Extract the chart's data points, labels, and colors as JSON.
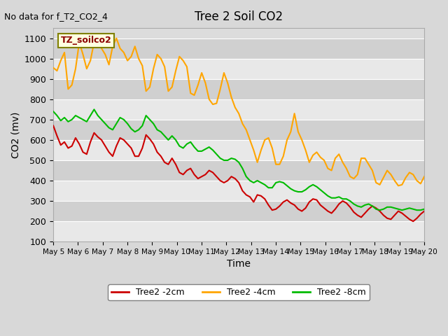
{
  "title": "Tree 2 Soil CO2",
  "subtitle": "No data for f_T2_CO2_4",
  "ylabel": "CO2 (mv)",
  "xlabel": "Time",
  "ylim": [
    100,
    1150
  ],
  "xlim": [
    0,
    15
  ],
  "xtick_labels": [
    "May 5",
    "May 6",
    "May 7",
    "May 8",
    "May 9",
    "May 10",
    "May 11",
    "May 12",
    "May 13",
    "May 14",
    "May 15",
    "May 16",
    "May 17",
    "May 18",
    "May 19",
    "May 20"
  ],
  "bg_color": "#e8e8e8",
  "plot_bg_color": "#dcdcdc",
  "band_color1": "#e0e0e0",
  "band_color2": "#cccccc",
  "legend_label_2cm": "Tree2 -2cm",
  "legend_label_4cm": "Tree2 -4cm",
  "legend_label_8cm": "Tree2 -8cm",
  "color_2cm": "#cc0000",
  "color_4cm": "#ffa500",
  "color_8cm": "#00bb00",
  "tz_label": "TZ_soilco2",
  "red_x": [
    0.0,
    0.15,
    0.3,
    0.45,
    0.6,
    0.75,
    0.9,
    1.05,
    1.2,
    1.35,
    1.5,
    1.65,
    1.8,
    1.95,
    2.1,
    2.25,
    2.4,
    2.55,
    2.7,
    2.85,
    3.0,
    3.15,
    3.3,
    3.45,
    3.6,
    3.75,
    3.9,
    4.05,
    4.2,
    4.35,
    4.5,
    4.65,
    4.8,
    4.95,
    5.1,
    5.25,
    5.4,
    5.55,
    5.7,
    5.85,
    6.0,
    6.15,
    6.3,
    6.45,
    6.6,
    6.75,
    6.9,
    7.05,
    7.2,
    7.35,
    7.5,
    7.65,
    7.8,
    7.95,
    8.1,
    8.25,
    8.4,
    8.55,
    8.7,
    8.85,
    9.0,
    9.15,
    9.3,
    9.45,
    9.6,
    9.75,
    9.9,
    10.05,
    10.2,
    10.35,
    10.5,
    10.65,
    10.8,
    10.95,
    11.1,
    11.25,
    11.4,
    11.55,
    11.7,
    11.85,
    12.0,
    12.15,
    12.3,
    12.45,
    12.6,
    12.75,
    12.9,
    13.05,
    13.2,
    13.35,
    13.5,
    13.65,
    13.8,
    13.95,
    14.1,
    14.25,
    14.4,
    14.55,
    14.7,
    14.85,
    15.0
  ],
  "red_y": [
    670,
    620,
    575,
    590,
    560,
    570,
    610,
    580,
    540,
    530,
    590,
    635,
    615,
    600,
    570,
    540,
    520,
    570,
    610,
    600,
    580,
    560,
    520,
    520,
    560,
    625,
    605,
    580,
    540,
    520,
    490,
    480,
    510,
    480,
    440,
    430,
    450,
    460,
    430,
    410,
    420,
    430,
    450,
    440,
    420,
    400,
    390,
    400,
    420,
    410,
    390,
    350,
    330,
    320,
    295,
    330,
    325,
    310,
    280,
    255,
    260,
    275,
    295,
    305,
    290,
    280,
    260,
    250,
    265,
    295,
    310,
    305,
    280,
    265,
    250,
    240,
    260,
    285,
    300,
    290,
    270,
    245,
    230,
    220,
    240,
    260,
    275,
    265,
    250,
    230,
    215,
    210,
    230,
    250,
    240,
    225,
    210,
    200,
    215,
    235,
    250
  ],
  "orange_x": [
    0.0,
    0.15,
    0.3,
    0.45,
    0.6,
    0.75,
    0.9,
    1.05,
    1.2,
    1.35,
    1.5,
    1.65,
    1.8,
    1.95,
    2.1,
    2.25,
    2.4,
    2.55,
    2.7,
    2.85,
    3.0,
    3.15,
    3.3,
    3.45,
    3.6,
    3.75,
    3.9,
    4.05,
    4.2,
    4.35,
    4.5,
    4.65,
    4.8,
    4.95,
    5.1,
    5.25,
    5.4,
    5.55,
    5.7,
    5.85,
    6.0,
    6.15,
    6.3,
    6.45,
    6.6,
    6.75,
    6.9,
    7.05,
    7.2,
    7.35,
    7.5,
    7.65,
    7.8,
    7.95,
    8.1,
    8.25,
    8.4,
    8.55,
    8.7,
    8.85,
    9.0,
    9.15,
    9.3,
    9.45,
    9.6,
    9.75,
    9.9,
    10.05,
    10.2,
    10.35,
    10.5,
    10.65,
    10.8,
    10.95,
    11.1,
    11.25,
    11.4,
    11.55,
    11.7,
    11.85,
    12.0,
    12.15,
    12.3,
    12.45,
    12.6,
    12.75,
    12.9,
    13.05,
    13.2,
    13.35,
    13.5,
    13.65,
    13.8,
    13.95,
    14.1,
    14.25,
    14.4,
    14.55,
    14.7,
    14.85,
    15.0
  ],
  "orange_y": [
    955,
    940,
    990,
    1030,
    850,
    870,
    950,
    1080,
    1020,
    950,
    990,
    1080,
    1100,
    1050,
    1020,
    970,
    1060,
    1100,
    1050,
    1030,
    990,
    1010,
    1060,
    1000,
    965,
    840,
    860,
    950,
    1020,
    1000,
    960,
    840,
    860,
    940,
    1010,
    990,
    960,
    830,
    820,
    870,
    930,
    880,
    800,
    775,
    780,
    850,
    930,
    880,
    810,
    760,
    730,
    680,
    650,
    600,
    550,
    490,
    550,
    600,
    610,
    560,
    480,
    480,
    520,
    600,
    640,
    730,
    640,
    600,
    550,
    490,
    525,
    540,
    515,
    500,
    460,
    450,
    510,
    530,
    490,
    460,
    420,
    410,
    430,
    510,
    510,
    480,
    450,
    390,
    380,
    415,
    450,
    430,
    400,
    375,
    380,
    415,
    440,
    430,
    400,
    385,
    420
  ],
  "green_x": [
    0.0,
    0.15,
    0.3,
    0.45,
    0.6,
    0.75,
    0.9,
    1.05,
    1.2,
    1.35,
    1.5,
    1.65,
    1.8,
    1.95,
    2.1,
    2.25,
    2.4,
    2.55,
    2.7,
    2.85,
    3.0,
    3.15,
    3.3,
    3.45,
    3.6,
    3.75,
    3.9,
    4.05,
    4.2,
    4.35,
    4.5,
    4.65,
    4.8,
    4.95,
    5.1,
    5.25,
    5.4,
    5.55,
    5.7,
    5.85,
    6.0,
    6.15,
    6.3,
    6.45,
    6.6,
    6.75,
    6.9,
    7.05,
    7.2,
    7.35,
    7.5,
    7.65,
    7.8,
    7.95,
    8.1,
    8.25,
    8.4,
    8.55,
    8.7,
    8.85,
    9.0,
    9.15,
    9.3,
    9.45,
    9.6,
    9.75,
    9.9,
    10.05,
    10.2,
    10.35,
    10.5,
    10.65,
    10.8,
    10.95,
    11.1,
    11.25,
    11.4,
    11.55,
    11.7,
    11.85,
    12.0,
    12.15,
    12.3,
    12.45,
    12.6,
    12.75,
    12.9,
    13.05,
    13.2,
    13.35,
    13.5,
    13.65,
    13.8,
    13.95,
    14.1,
    14.25,
    14.4,
    14.55,
    14.7,
    14.85,
    15.0
  ],
  "green_y": [
    740,
    720,
    695,
    710,
    690,
    700,
    720,
    710,
    700,
    690,
    720,
    750,
    720,
    700,
    680,
    660,
    650,
    680,
    710,
    700,
    680,
    655,
    640,
    650,
    670,
    720,
    700,
    680,
    650,
    640,
    620,
    600,
    620,
    600,
    570,
    560,
    580,
    590,
    565,
    545,
    545,
    555,
    565,
    550,
    530,
    510,
    500,
    500,
    510,
    505,
    490,
    460,
    420,
    400,
    390,
    400,
    390,
    380,
    365,
    365,
    390,
    395,
    390,
    375,
    360,
    350,
    345,
    345,
    355,
    370,
    380,
    370,
    355,
    340,
    325,
    315,
    315,
    320,
    310,
    310,
    300,
    285,
    275,
    270,
    280,
    285,
    275,
    260,
    255,
    260,
    270,
    270,
    265,
    260,
    255,
    260,
    265,
    260,
    255,
    255,
    260
  ]
}
